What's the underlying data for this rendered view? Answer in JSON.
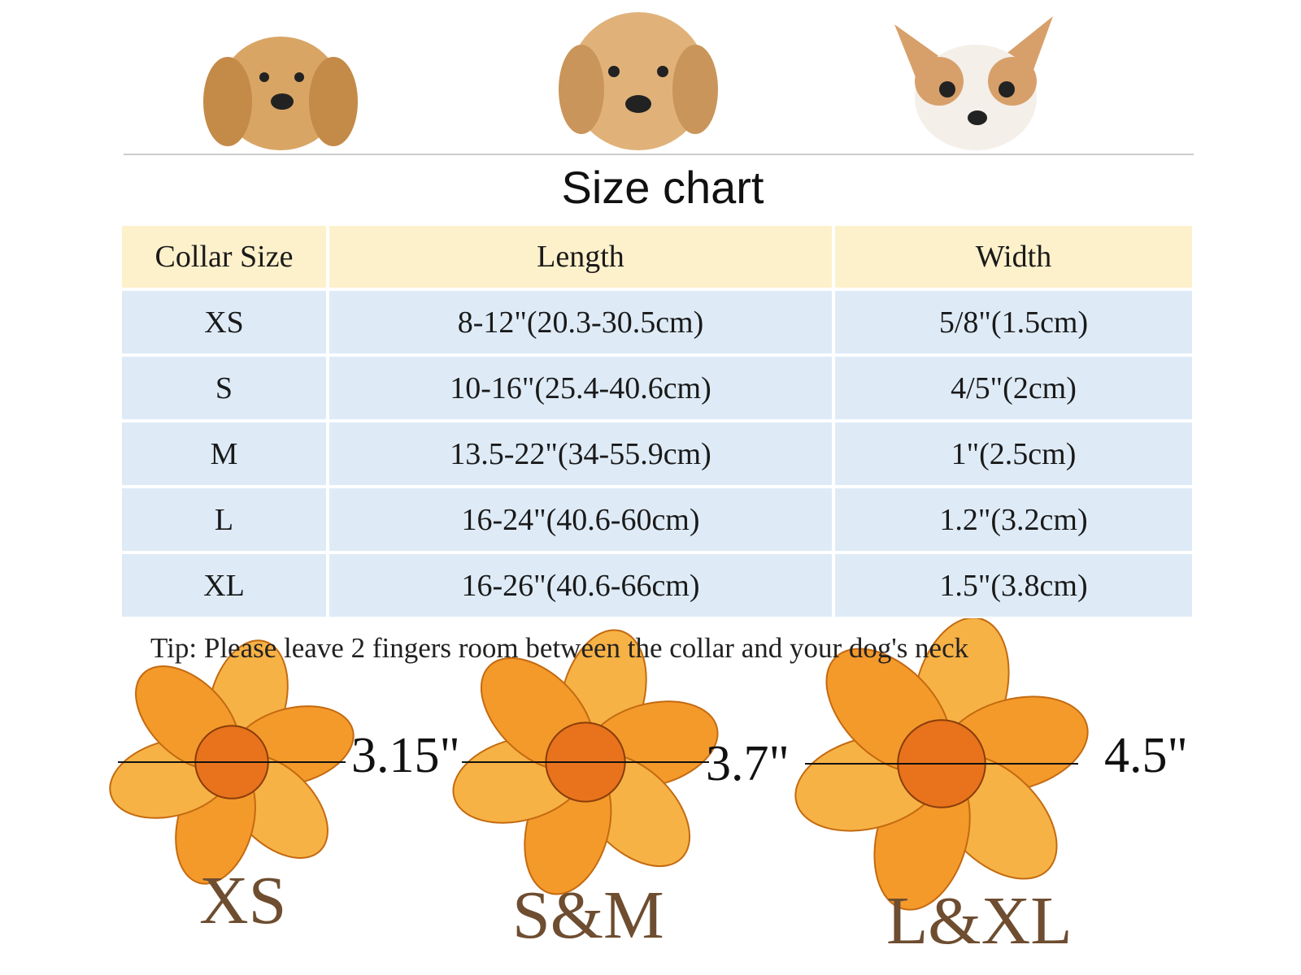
{
  "title": "Size chart",
  "table": {
    "header": [
      "Collar Size",
      "Length",
      "Width"
    ],
    "rows": [
      [
        "XS",
        "8-12\"(20.3-30.5cm)",
        "5/8\"(1.5cm)"
      ],
      [
        "S",
        "10-16\"(25.4-40.6cm)",
        "4/5\"(2cm)"
      ],
      [
        "M",
        "13.5-22\"(34-55.9cm)",
        "1\"(2.5cm)"
      ],
      [
        "L",
        "16-24\"(40.6-60cm)",
        "1.2\"(3.2cm)"
      ],
      [
        "XL",
        "16-26\"(40.6-66cm)",
        "1.5\"(3.8cm)"
      ]
    ]
  },
  "tip": "Tip: Please leave 2 fingers room between the collar and your dog's neck",
  "flowers": [
    {
      "dimension": "3.15\"",
      "size": "XS"
    },
    {
      "dimension": "3.7\"",
      "size": "S&M"
    },
    {
      "dimension": "4.5\"",
      "size": "L&XL"
    }
  ]
}
